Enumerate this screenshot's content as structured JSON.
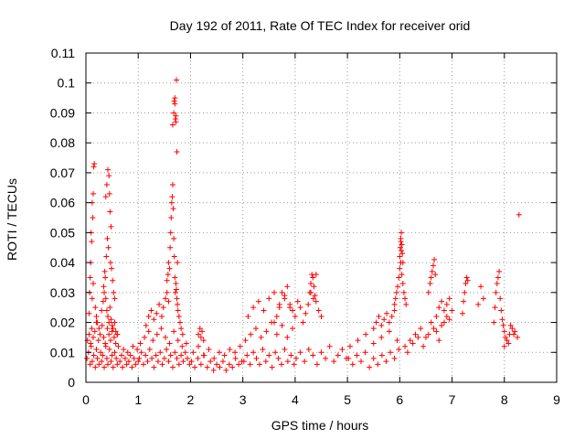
{
  "chart_data": {
    "type": "scatter",
    "title": "Day 192 of 2011, Rate Of TEC Index for receiver orid",
    "xlabel": "GPS time / hours",
    "ylabel": "ROTI / TECUs",
    "xlim": [
      0,
      9
    ],
    "ylim": [
      0,
      0.11
    ],
    "xticks": [
      "0",
      "1",
      "2",
      "3",
      "4",
      "5",
      "6",
      "7",
      "8",
      "9"
    ],
    "yticks": [
      "0",
      "0.01",
      "0.02",
      "0.03",
      "0.04",
      "0.05",
      "0.06",
      "0.07",
      "0.08",
      "0.09",
      "0.1",
      "0.11"
    ],
    "grid": true,
    "marker": "plus",
    "series_color": "#ff0000",
    "x": [
      0.02,
      0.05,
      0.08,
      0.1,
      0.12,
      0.15,
      0.18,
      0.2,
      0.22,
      0.25,
      0.28,
      0.3,
      0.32,
      0.35,
      0.38,
      0.4,
      0.42,
      0.45,
      0.48,
      0.5,
      0.52,
      0.55,
      0.58,
      0.6,
      0.62,
      0.65,
      0.68,
      0.7,
      0.72,
      0.75,
      0.78,
      0.8,
      0.82,
      0.85,
      0.88,
      0.9,
      0.92,
      0.95,
      0.98,
      1.0,
      0.03,
      0.06,
      0.09,
      0.11,
      0.14,
      0.17,
      0.2,
      0.24,
      0.27,
      0.31,
      0.34,
      0.37,
      0.41,
      0.44,
      0.47,
      0.5,
      0.54,
      0.57,
      0.6,
      0.06,
      0.08,
      0.1,
      0.12,
      0.14,
      0.15,
      0.16,
      0.13,
      0.11,
      0.09,
      0.07,
      0.12,
      0.14,
      0.18,
      0.2,
      0.22,
      0.25,
      0.3,
      0.33,
      0.35,
      0.37,
      0.38,
      0.4,
      0.42,
      0.44,
      0.46,
      0.48,
      0.5,
      0.52,
      0.55,
      0.57,
      0.6,
      0.38,
      0.4,
      0.42,
      0.44,
      0.45,
      0.46,
      0.48,
      0.41,
      0.43,
      0.47,
      0.39,
      0.36,
      0.34,
      0.49,
      0.51,
      0.53,
      0.55,
      1.02,
      1.06,
      1.1,
      1.14,
      1.18,
      1.22,
      1.26,
      1.3,
      1.34,
      1.38,
      1.42,
      1.46,
      1.5,
      1.54,
      1.58,
      1.62,
      1.66,
      1.7,
      1.74,
      1.78,
      1.82,
      1.86,
      1.9,
      1.94,
      1.98,
      1.04,
      1.12,
      1.2,
      1.28,
      1.36,
      1.44,
      1.52,
      1.6,
      1.68,
      1.76,
      1.84,
      1.92,
      1.15,
      1.2,
      1.25,
      1.3,
      1.35,
      1.4,
      1.45,
      1.48,
      1.52,
      1.55,
      1.58,
      1.55,
      1.57,
      1.58,
      1.6,
      1.61,
      1.62,
      1.63,
      1.64,
      1.65,
      1.66,
      1.67,
      1.68,
      1.69,
      1.7,
      1.71,
      1.72,
      1.73,
      1.74,
      1.75,
      1.76,
      1.78,
      1.8,
      1.82,
      1.85,
      1.66,
      1.68,
      1.69,
      1.7,
      1.71,
      1.72,
      1.73,
      1.74,
      1.75,
      1.7,
      1.72,
      2.02,
      2.08,
      2.14,
      2.2,
      2.26,
      2.32,
      2.38,
      2.44,
      2.5,
      2.56,
      2.62,
      2.68,
      2.74,
      2.8,
      2.86,
      2.92,
      2.98,
      2.05,
      2.15,
      2.25,
      2.35,
      2.45,
      2.55,
      2.65,
      2.75,
      2.85,
      2.95,
      2.15,
      2.18,
      2.2,
      2.22,
      2.25,
      3.02,
      3.08,
      3.14,
      3.2,
      3.26,
      3.32,
      3.38,
      3.44,
      3.5,
      3.56,
      3.62,
      3.68,
      3.74,
      3.8,
      3.86,
      3.92,
      3.98,
      3.05,
      3.15,
      3.25,
      3.35,
      3.45,
      3.55,
      3.65,
      3.75,
      3.85,
      3.95,
      3.1,
      3.2,
      3.3,
      3.4,
      3.5,
      3.6,
      3.7,
      3.8,
      3.9,
      3.6,
      3.65,
      3.7,
      3.75,
      3.8,
      3.85,
      3.9,
      3.95,
      4.0,
      4.05,
      4.1,
      4.15,
      4.2,
      4.25,
      4.3,
      4.35,
      4.4,
      4.45,
      4.5,
      4.02,
      4.1,
      4.18,
      4.26,
      4.34,
      4.42,
      4.5,
      4.58,
      4.66,
      4.74,
      4.82,
      4.9,
      4.98,
      4.28,
      4.3,
      4.32,
      4.34,
      4.36,
      4.38,
      4.4,
      5.02,
      5.1,
      5.18,
      5.26,
      5.34,
      5.42,
      5.5,
      5.58,
      5.66,
      5.74,
      5.82,
      5.9,
      5.98,
      5.05,
      5.2,
      5.35,
      5.5,
      5.65,
      5.8,
      5.95,
      5.5,
      5.55,
      5.6,
      5.65,
      5.7,
      5.75,
      5.8,
      5.85,
      5.9,
      5.9,
      5.92,
      5.94,
      5.96,
      5.98,
      6.0,
      6.02,
      6.04,
      6.06,
      6.08,
      6.1,
      6.12,
      6.0,
      6.01,
      6.02,
      6.03,
      6.04,
      6.05,
      6.06,
      6.03,
      6.02,
      6.1,
      6.2,
      6.3,
      6.4,
      6.5,
      6.6,
      6.7,
      6.8,
      6.9,
      7.0,
      6.15,
      6.25,
      6.35,
      6.45,
      6.55,
      6.65,
      6.75,
      6.85,
      6.95,
      6.55,
      6.58,
      6.6,
      6.62,
      6.64,
      6.66,
      6.68,
      6.7,
      6.75,
      6.8,
      6.85,
      6.9,
      6.95,
      7.2,
      7.22,
      7.24,
      7.26,
      7.28,
      7.3,
      7.5,
      7.55,
      7.6,
      7.8,
      7.82,
      7.84,
      7.86,
      7.88,
      7.9,
      7.92,
      7.94,
      7.96,
      7.98,
      8.0,
      8.02,
      8.0,
      8.05,
      8.1,
      8.15,
      8.2,
      8.25,
      8.08,
      8.12,
      8.18,
      8.28
    ],
    "y": [
      0.008,
      0.01,
      0.006,
      0.012,
      0.007,
      0.009,
      0.005,
      0.011,
      0.008,
      0.006,
      0.01,
      0.007,
      0.009,
      0.005,
      0.012,
      0.008,
      0.006,
      0.011,
      0.007,
      0.009,
      0.005,
      0.01,
      0.008,
      0.006,
      0.012,
      0.007,
      0.009,
      0.005,
      0.011,
      0.008,
      0.006,
      0.01,
      0.007,
      0.009,
      0.005,
      0.012,
      0.008,
      0.006,
      0.011,
      0.007,
      0.014,
      0.016,
      0.013,
      0.018,
      0.015,
      0.017,
      0.02,
      0.014,
      0.016,
      0.019,
      0.015,
      0.013,
      0.018,
      0.016,
      0.014,
      0.017,
      0.015,
      0.013,
      0.016,
      0.023,
      0.035,
      0.05,
      0.06,
      0.063,
      0.072,
      0.073,
      0.055,
      0.047,
      0.04,
      0.03,
      0.028,
      0.033,
      0.025,
      0.022,
      0.02,
      0.018,
      0.024,
      0.027,
      0.03,
      0.035,
      0.028,
      0.024,
      0.022,
      0.02,
      0.025,
      0.021,
      0.019,
      0.018,
      0.02,
      0.017,
      0.016,
      0.062,
      0.066,
      0.071,
      0.069,
      0.063,
      0.057,
      0.052,
      0.048,
      0.045,
      0.04,
      0.042,
      0.037,
      0.032,
      0.038,
      0.034,
      0.03,
      0.028,
      0.008,
      0.01,
      0.006,
      0.009,
      0.007,
      0.011,
      0.008,
      0.005,
      0.009,
      0.007,
      0.01,
      0.006,
      0.008,
      0.011,
      0.007,
      0.009,
      0.005,
      0.01,
      0.008,
      0.006,
      0.009,
      0.007,
      0.01,
      0.008,
      0.006,
      0.013,
      0.015,
      0.017,
      0.014,
      0.016,
      0.018,
      0.015,
      0.013,
      0.017,
      0.014,
      0.012,
      0.013,
      0.019,
      0.022,
      0.024,
      0.021,
      0.023,
      0.026,
      0.022,
      0.025,
      0.028,
      0.03,
      0.027,
      0.034,
      0.036,
      0.04,
      0.038,
      0.045,
      0.05,
      0.055,
      0.06,
      0.062,
      0.066,
      0.058,
      0.048,
      0.042,
      0.035,
      0.03,
      0.033,
      0.031,
      0.028,
      0.026,
      0.024,
      0.022,
      0.02,
      0.018,
      0.016,
      0.086,
      0.09,
      0.094,
      0.093,
      0.088,
      0.089,
      0.101,
      0.077,
      0.04,
      0.095,
      0.087,
      0.007,
      0.005,
      0.008,
      0.006,
      0.009,
      0.005,
      0.007,
      0.004,
      0.006,
      0.005,
      0.007,
      0.004,
      0.006,
      0.005,
      0.008,
      0.006,
      0.007,
      0.01,
      0.012,
      0.009,
      0.011,
      0.008,
      0.01,
      0.009,
      0.011,
      0.01,
      0.012,
      0.016,
      0.018,
      0.015,
      0.017,
      0.014,
      0.007,
      0.009,
      0.006,
      0.01,
      0.008,
      0.006,
      0.011,
      0.007,
      0.009,
      0.005,
      0.01,
      0.008,
      0.006,
      0.011,
      0.007,
      0.009,
      0.006,
      0.014,
      0.016,
      0.018,
      0.015,
      0.017,
      0.02,
      0.016,
      0.019,
      0.015,
      0.018,
      0.022,
      0.025,
      0.027,
      0.024,
      0.028,
      0.03,
      0.026,
      0.029,
      0.025,
      0.02,
      0.022,
      0.025,
      0.03,
      0.028,
      0.032,
      0.026,
      0.024,
      0.022,
      0.027,
      0.025,
      0.02,
      0.023,
      0.026,
      0.03,
      0.028,
      0.036,
      0.024,
      0.022,
      0.008,
      0.01,
      0.007,
      0.011,
      0.009,
      0.006,
      0.01,
      0.008,
      0.012,
      0.007,
      0.009,
      0.011,
      0.008,
      0.03,
      0.033,
      0.036,
      0.035,
      0.032,
      0.029,
      0.027,
      0.008,
      0.006,
      0.009,
      0.007,
      0.01,
      0.005,
      0.008,
      0.006,
      0.009,
      0.007,
      0.01,
      0.008,
      0.011,
      0.012,
      0.014,
      0.016,
      0.013,
      0.015,
      0.017,
      0.014,
      0.018,
      0.02,
      0.022,
      0.019,
      0.021,
      0.023,
      0.02,
      0.022,
      0.024,
      0.026,
      0.028,
      0.03,
      0.032,
      0.035,
      0.038,
      0.04,
      0.036,
      0.033,
      0.03,
      0.028,
      0.026,
      0.042,
      0.045,
      0.048,
      0.05,
      0.046,
      0.043,
      0.04,
      0.044,
      0.047,
      0.012,
      0.014,
      0.016,
      0.018,
      0.015,
      0.02,
      0.017,
      0.019,
      0.022,
      0.024,
      0.01,
      0.013,
      0.015,
      0.012,
      0.016,
      0.018,
      0.014,
      0.02,
      0.021,
      0.03,
      0.033,
      0.035,
      0.037,
      0.039,
      0.041,
      0.036,
      0.022,
      0.025,
      0.027,
      0.024,
      0.026,
      0.028,
      0.023,
      0.027,
      0.03,
      0.033,
      0.035,
      0.034,
      0.026,
      0.032,
      0.028,
      0.02,
      0.025,
      0.03,
      0.033,
      0.035,
      0.037,
      0.028,
      0.024,
      0.021,
      0.019,
      0.017,
      0.015,
      0.012,
      0.014,
      0.016,
      0.018,
      0.017,
      0.015,
      0.013,
      0.019,
      0.016,
      0.056
    ]
  }
}
